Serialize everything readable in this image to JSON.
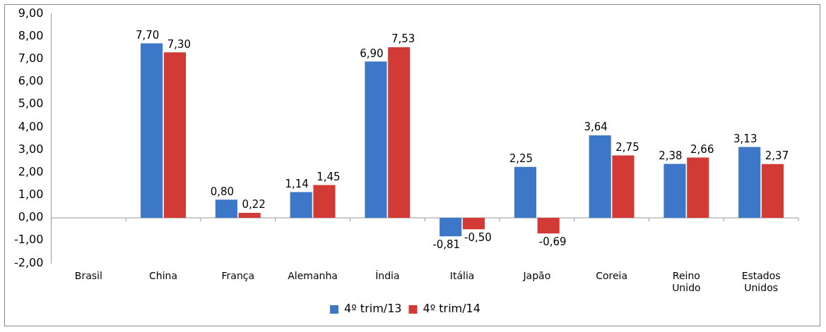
{
  "chart_data": {
    "type": "bar",
    "categories": [
      "Brasil",
      "China",
      "França",
      "Alemanha",
      "Índia",
      "Itália",
      "Japão",
      "Coreia",
      "Reino Unido",
      "Estados Unidos"
    ],
    "series": [
      {
        "name": "4º trim/13",
        "color": "#3d78c8",
        "values": [
          null,
          7.7,
          0.8,
          1.14,
          6.9,
          -0.81,
          2.25,
          3.64,
          2.38,
          3.13
        ],
        "value_labels": [
          null,
          "7,70",
          "0,80",
          "1,14",
          "6,90",
          "-0,81",
          "2,25",
          "3,64",
          "2,38",
          "3,13"
        ]
      },
      {
        "name": "4º trim/14",
        "color": "#d23a36",
        "values": [
          null,
          7.3,
          0.22,
          1.45,
          7.53,
          -0.5,
          -0.69,
          2.75,
          2.66,
          2.37
        ],
        "value_labels": [
          null,
          "7,30",
          "0,22",
          "1,45",
          "7,53",
          "-0,50",
          "-0,69",
          "2,75",
          "2,66",
          "2,37"
        ]
      }
    ],
    "ylim": [
      -2,
      9
    ],
    "yticks": [
      {
        "value": -2,
        "label": "-2,00"
      },
      {
        "value": -1,
        "label": "-1,00"
      },
      {
        "value": 0,
        "label": "0,00"
      },
      {
        "value": 1,
        "label": "1,00"
      },
      {
        "value": 2,
        "label": "2,00"
      },
      {
        "value": 3,
        "label": "3,00"
      },
      {
        "value": 4,
        "label": "4,00"
      },
      {
        "value": 5,
        "label": "5,00"
      },
      {
        "value": 6,
        "label": "6,00"
      },
      {
        "value": 7,
        "label": "7,00"
      },
      {
        "value": 8,
        "label": "8,00"
      },
      {
        "value": 9,
        "label": "9,00"
      }
    ],
    "ref_lines": [
      {
        "axis": "y",
        "value": 0,
        "color": "#999999"
      }
    ],
    "grid": false,
    "legend": "bottom"
  }
}
